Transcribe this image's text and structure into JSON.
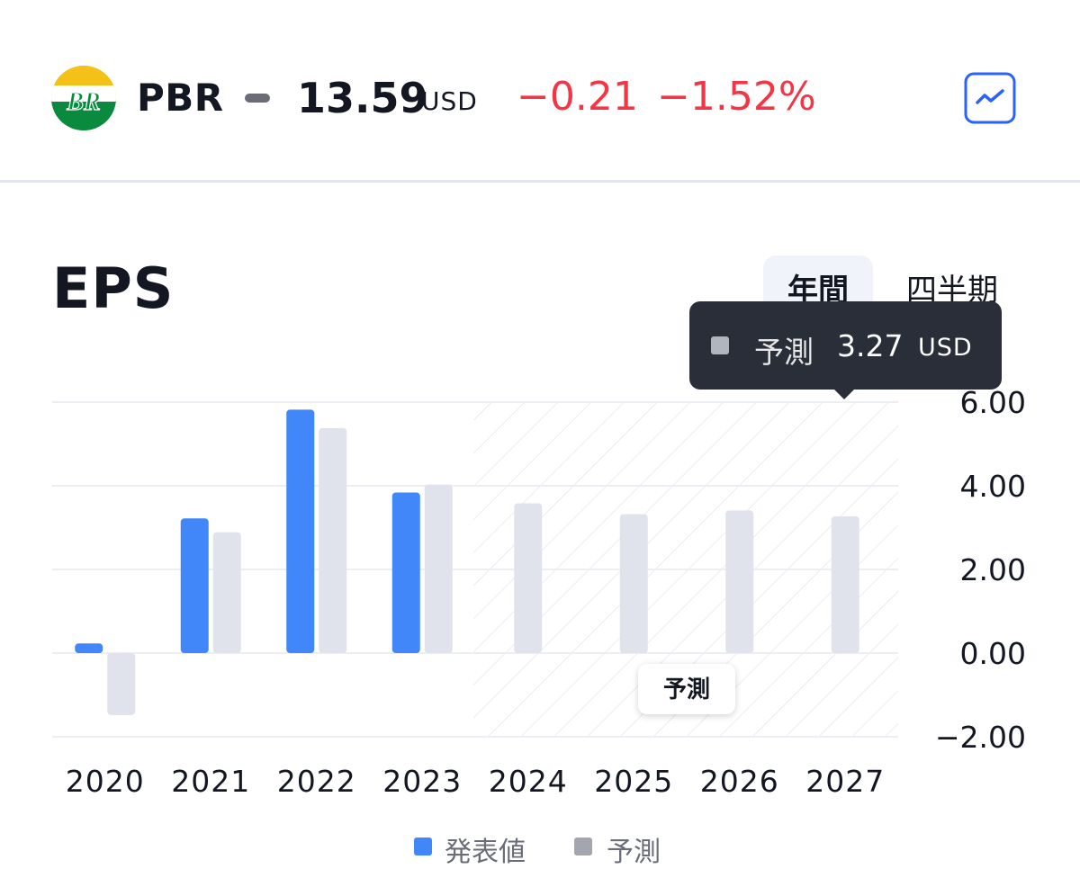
{
  "header": {
    "ticker": "PBR",
    "price": "13.59",
    "currency": "USD",
    "change": "−0.21",
    "change_percent": "−1.52%",
    "change_color": "#f23645",
    "logo_text": "BR"
  },
  "section": {
    "title": "EPS",
    "tabs": [
      {
        "label": "年間",
        "active": true
      },
      {
        "label": "四半期",
        "active": false
      }
    ]
  },
  "tooltip": {
    "label": "予測",
    "value": "3.27",
    "unit": "USD"
  },
  "forecast_badge": "予測",
  "legend": [
    {
      "label": "発表値",
      "color": "#4187fa"
    },
    {
      "label": "予測",
      "color": "#a3a6af"
    }
  ],
  "chart_data": {
    "type": "bar",
    "title": "EPS",
    "categories": [
      "2020",
      "2021",
      "2022",
      "2023",
      "2024",
      "2025",
      "2026",
      "2027"
    ],
    "series": [
      {
        "name": "発表値",
        "color": "#4187fa",
        "values": [
          0.23,
          3.22,
          5.82,
          3.84,
          null,
          null,
          null,
          null
        ]
      },
      {
        "name": "予測",
        "color": "#e0e3eb",
        "values": [
          -1.48,
          2.89,
          5.38,
          4.03,
          3.58,
          3.32,
          3.41,
          3.27
        ]
      }
    ],
    "yticks": [
      "6.00",
      "4.00",
      "2.00",
      "0.00",
      "−2.00"
    ],
    "ytick_values": [
      6,
      4,
      2,
      0,
      -2
    ],
    "ylim": [
      -2,
      6
    ],
    "forecast_start_category": "2024",
    "grid": true,
    "legend_position": "bottom",
    "unit": "USD"
  }
}
